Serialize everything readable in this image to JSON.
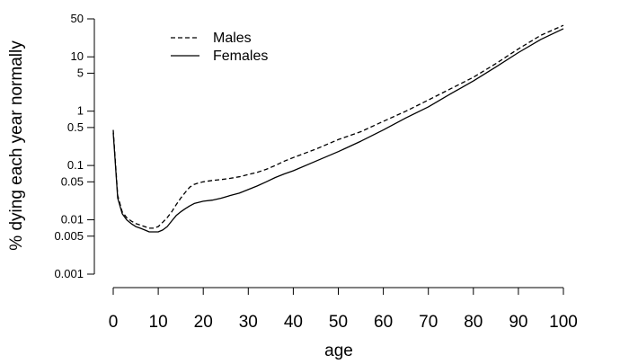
{
  "chart_data": {
    "type": "line",
    "title": "",
    "xlabel": "age",
    "ylabel": "% dying each year normally",
    "xlim": [
      0,
      100
    ],
    "ylim": [
      0.001,
      50
    ],
    "y_scale": "log",
    "xticks": [
      "0",
      "10",
      "20",
      "30",
      "40",
      "50",
      "60",
      "70",
      "80",
      "90",
      "100"
    ],
    "yticks": [
      {
        "value": 50,
        "label": "50"
      },
      {
        "value": 10,
        "label": "10"
      },
      {
        "value": 5,
        "label": "5"
      },
      {
        "value": 1,
        "label": "1"
      },
      {
        "value": 0.5,
        "label": "0.5"
      },
      {
        "value": 0.1,
        "label": "0.1"
      },
      {
        "value": 0.05,
        "label": "0.05"
      },
      {
        "value": 0.01,
        "label": "0.01"
      },
      {
        "value": 0.005,
        "label": "0.005"
      },
      {
        "value": 0.001,
        "label": "0.001"
      }
    ],
    "grid": false,
    "legend_position": "top-left",
    "x": [
      0,
      1,
      2,
      3,
      4,
      5,
      6,
      7,
      8,
      9,
      10,
      11,
      12,
      13,
      14,
      15,
      16,
      17,
      18,
      19,
      20,
      22,
      24,
      26,
      28,
      30,
      32,
      34,
      36,
      38,
      40,
      45,
      50,
      55,
      60,
      65,
      70,
      75,
      80,
      85,
      90,
      95,
      100
    ],
    "series": [
      {
        "name": "Males",
        "style": "dashed",
        "values": [
          0.45,
          0.028,
          0.014,
          0.011,
          0.0095,
          0.0085,
          0.008,
          0.0075,
          0.007,
          0.007,
          0.0075,
          0.009,
          0.011,
          0.014,
          0.019,
          0.025,
          0.032,
          0.04,
          0.045,
          0.048,
          0.05,
          0.053,
          0.055,
          0.058,
          0.062,
          0.068,
          0.075,
          0.085,
          0.1,
          0.12,
          0.14,
          0.2,
          0.3,
          0.42,
          0.65,
          1.0,
          1.6,
          2.6,
          4.2,
          7.5,
          14,
          25,
          38
        ]
      },
      {
        "name": "Females",
        "style": "solid",
        "values": [
          0.4,
          0.025,
          0.013,
          0.01,
          0.0085,
          0.0075,
          0.007,
          0.0065,
          0.006,
          0.006,
          0.006,
          0.0065,
          0.0075,
          0.0095,
          0.012,
          0.014,
          0.016,
          0.018,
          0.02,
          0.021,
          0.022,
          0.023,
          0.025,
          0.028,
          0.031,
          0.036,
          0.042,
          0.05,
          0.06,
          0.07,
          0.08,
          0.12,
          0.18,
          0.28,
          0.45,
          0.75,
          1.2,
          2.1,
          3.6,
          6.5,
          12,
          21,
          33
        ]
      }
    ]
  }
}
